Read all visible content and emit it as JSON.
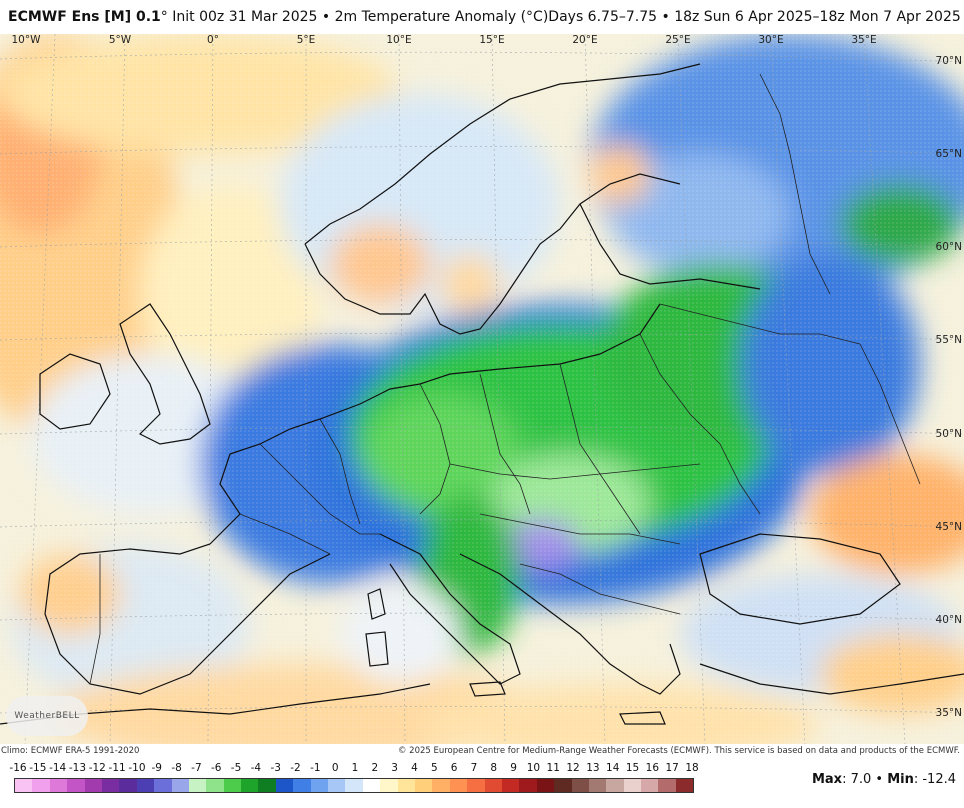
{
  "header": {
    "model": "ECMWF Ens [M] 0.1",
    "init": "° Init 00z 31 Mar 2025 • 2m Temperature Anomaly (°C)",
    "valid": "Days 6.75–7.75 • 18z Sun 6 Apr 2025–18z Mon 7 Apr 2025"
  },
  "map": {
    "lon_labels": [
      "10°W",
      "5°W",
      "0°",
      "5°E",
      "10°E",
      "15°E",
      "20°E",
      "25°E",
      "30°E",
      "35°E"
    ],
    "lat_labels": [
      "70°N",
      "65°N",
      "60°N",
      "55°N",
      "50°N",
      "45°N",
      "40°N",
      "35°N"
    ],
    "logo_text": "WeatherBELL"
  },
  "footer": {
    "climo": "Climo: ECMWF ERA-5 1991-2020",
    "copyright": "© 2025 European Centre for Medium-Range Weather Forecasts (ECMWF). This service is based on data and products of the ECMWF."
  },
  "legend": {
    "labels": [
      "-16",
      "-15",
      "-14",
      "-13",
      "-12",
      "-11",
      "-10",
      "-9",
      "-8",
      "-7",
      "-6",
      "-5",
      "-4",
      "-3",
      "-2",
      "-1",
      "0",
      "1",
      "2",
      "3",
      "4",
      "5",
      "6",
      "7",
      "8",
      "9",
      "10",
      "11",
      "12",
      "13",
      "14",
      "15",
      "16",
      "17",
      "18"
    ],
    "colors": [
      "#f9c4f3",
      "#f0a0ec",
      "#de79d9",
      "#c355c6",
      "#a23bad",
      "#7a2da0",
      "#5a2c9c",
      "#4b3fb3",
      "#6b6fd9",
      "#9aa6ea",
      "#c6f2c4",
      "#8fe48b",
      "#4ccc4a",
      "#1ea32b",
      "#0f7d22",
      "#1d56c8",
      "#3f7fe6",
      "#6fa3f0",
      "#a7c8f6",
      "#d3e6fa",
      "#ffffff",
      "#fff6c9",
      "#ffe59a",
      "#ffcf7a",
      "#ffb064",
      "#ff9152",
      "#f56f43",
      "#e04b32",
      "#c42a24",
      "#9e1a1c",
      "#7a1316",
      "#5e2a22",
      "#7e4f47",
      "#a37a72",
      "#c9a7a1",
      "#ead1ce",
      "#d7a8a8",
      "#b46b6b",
      "#8c2b2b"
    ],
    "max_label": "Max",
    "max_value": ": 7.0 • ",
    "min_label": "Min",
    "min_value": ": -12.4"
  },
  "colors": {
    "land_warm": "#ffe0a3",
    "land_cool": "#cfe3f6",
    "cold_blue": "#2f6fde",
    "cold_green": "#2fbe3c",
    "cold_purple": "#9b7fe8",
    "warm_orange": "#ffb26a",
    "sea_pale": "#f6f3e6"
  }
}
